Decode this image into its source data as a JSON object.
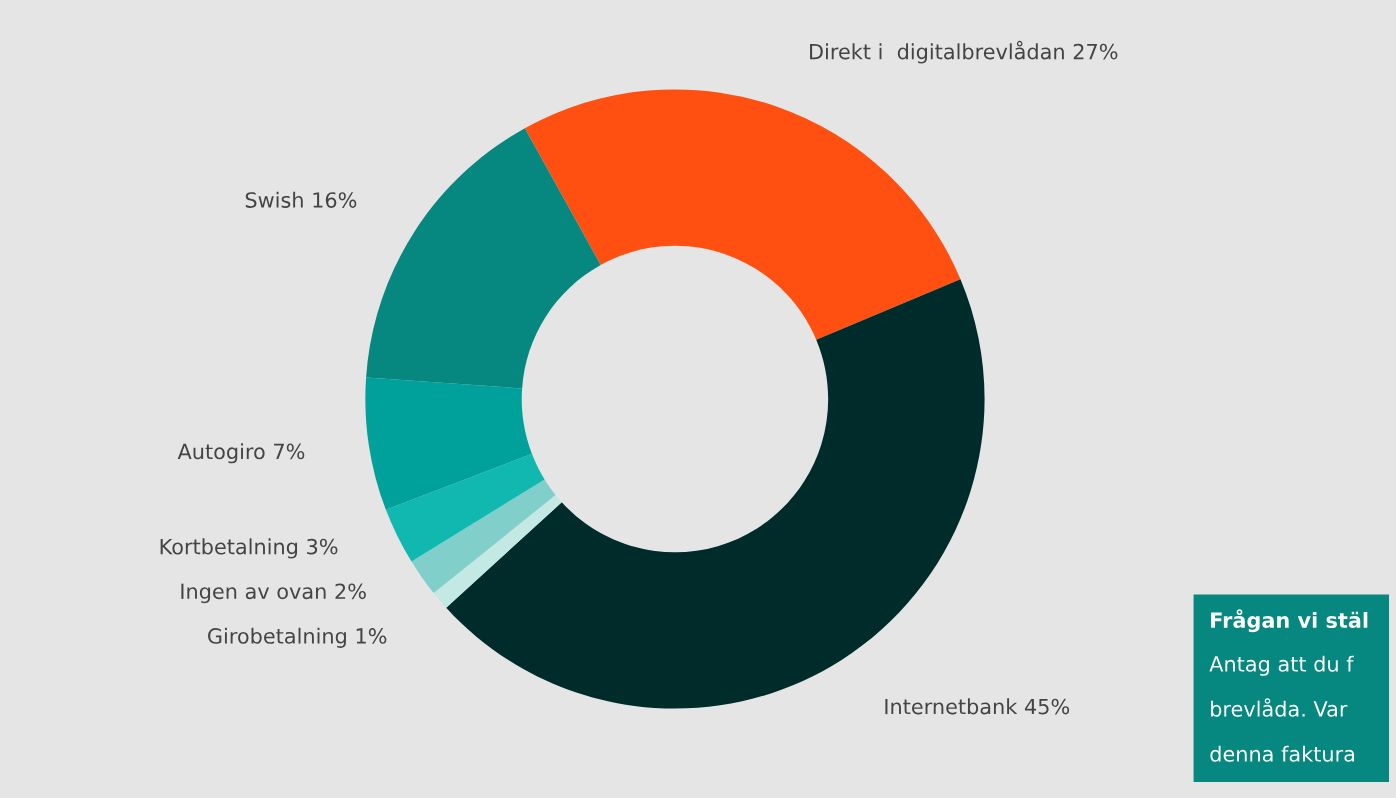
{
  "chart_data": {
    "type": "donut",
    "categories": [
      "Direkt i  digitalbrevlådan",
      "Internetbank",
      "Girobetalning",
      "Ingen av ovan",
      "Kortbetalning",
      "Autogiro",
      "Swish"
    ],
    "values": [
      27,
      45,
      1,
      2,
      3,
      7,
      16
    ],
    "value_labels": [
      "27%",
      "45%",
      "1%",
      "2%",
      "3%",
      "7%",
      "16%"
    ],
    "colors": [
      "#ff5011",
      "#002b2b",
      "#c4e8e4",
      "#80cfca",
      "#10b8b0",
      "#00a19a",
      "#06877f"
    ],
    "legend": false,
    "annotations": [
      "Frågan vi stäl",
      "Antag att du f",
      "brevlåda. Var",
      "denna faktura"
    ]
  }
}
